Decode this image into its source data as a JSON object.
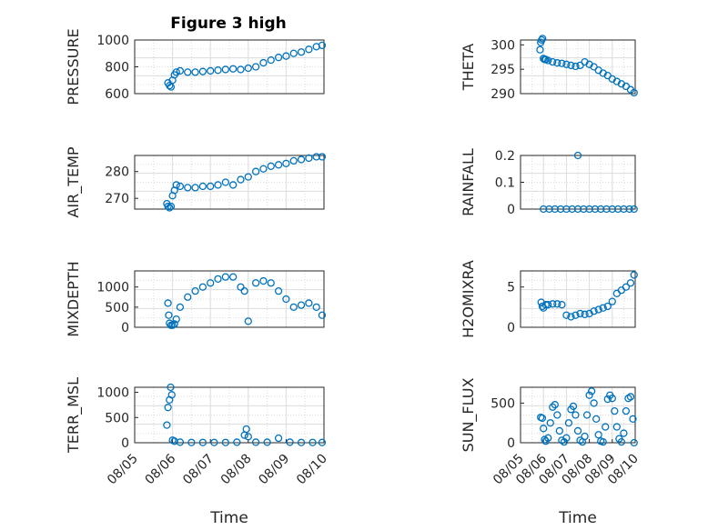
{
  "figure_title": "Figure 3 high",
  "colors": {
    "marker": "#0072BD",
    "axis": "#262626",
    "grid": "#dcdcdc"
  },
  "chart_data": [
    {
      "type": "scatter",
      "ylabel": "PRESSURE",
      "ylim": [
        600,
        1000
      ],
      "yticks": [
        "600",
        "800",
        "1000"
      ],
      "xlim": [
        0,
        5
      ],
      "xticks": [],
      "grid": true,
      "x": [
        0.88,
        0.92,
        0.96,
        1.0,
        1.05,
        1.1,
        1.2,
        1.4,
        1.6,
        1.8,
        2.0,
        2.2,
        2.4,
        2.6,
        2.8,
        3.0,
        3.2,
        3.4,
        3.6,
        3.8,
        4.0,
        4.2,
        4.4,
        4.6,
        4.8,
        4.95
      ],
      "y": [
        680,
        660,
        650,
        700,
        740,
        760,
        770,
        760,
        760,
        765,
        770,
        775,
        780,
        785,
        780,
        790,
        800,
        830,
        850,
        870,
        880,
        900,
        910,
        930,
        950,
        960
      ]
    },
    {
      "type": "scatter",
      "ylabel": "THETA",
      "ylim": [
        290,
        301
      ],
      "yticks": [
        "290",
        "295",
        "300"
      ],
      "xlim": [
        0,
        5
      ],
      "xticks": [],
      "grid": true,
      "x": [
        0.85,
        0.88,
        0.92,
        0.96,
        1.0,
        1.05,
        1.1,
        1.2,
        1.4,
        1.6,
        1.8,
        2.0,
        2.2,
        2.4,
        2.6,
        2.8,
        3.0,
        3.2,
        3.4,
        3.6,
        3.8,
        4.0,
        4.2,
        4.4,
        4.6,
        4.8,
        4.95
      ],
      "y": [
        299,
        300.5,
        301,
        301.3,
        297.2,
        297,
        297,
        296.8,
        296.5,
        296.3,
        296.2,
        296,
        295.8,
        295.6,
        295.8,
        296.5,
        296,
        295.5,
        294.8,
        294.2,
        293.7,
        293,
        292.5,
        292,
        291.5,
        290.8,
        290.2
      ]
    },
    {
      "type": "scatter",
      "ylabel": "AIR_TEMP",
      "ylim": [
        266,
        286
      ],
      "yticks": [
        "270",
        "280"
      ],
      "xlim": [
        0,
        5
      ],
      "xticks": [],
      "grid": true,
      "x": [
        0.85,
        0.88,
        0.92,
        0.96,
        1.0,
        1.05,
        1.1,
        1.2,
        1.4,
        1.6,
        1.8,
        2.0,
        2.2,
        2.4,
        2.6,
        2.8,
        3.0,
        3.2,
        3.4,
        3.6,
        3.8,
        4.0,
        4.2,
        4.4,
        4.6,
        4.8,
        4.95
      ],
      "y": [
        268,
        267,
        266.5,
        267,
        271,
        273,
        275,
        274.5,
        274,
        274,
        274.5,
        274.5,
        275,
        276,
        275,
        277,
        278,
        280,
        281,
        282,
        282.5,
        283,
        284,
        284.5,
        285,
        285.5,
        285.5
      ]
    },
    {
      "type": "scatter",
      "ylabel": "RAINFALL",
      "ylim": [
        0,
        0.2
      ],
      "yticks": [
        "0",
        "0.1",
        "0.2"
      ],
      "xlim": [
        0,
        5
      ],
      "xticks": [],
      "grid": true,
      "x": [
        1.0,
        1.25,
        1.5,
        1.75,
        2.0,
        2.25,
        2.5,
        2.75,
        3.0,
        3.25,
        3.5,
        3.75,
        4.0,
        4.25,
        4.5,
        4.75,
        4.95,
        2.5
      ],
      "y": [
        0,
        0,
        0,
        0,
        0,
        0,
        0,
        0,
        0,
        0,
        0,
        0,
        0,
        0,
        0,
        0,
        0,
        0.2
      ]
    },
    {
      "type": "scatter",
      "ylabel": "MIXDEPTH",
      "ylim": [
        0,
        1400
      ],
      "yticks": [
        "0",
        "500",
        "1000"
      ],
      "xlim": [
        0,
        5
      ],
      "xticks": [],
      "grid": true,
      "x": [
        0.88,
        0.9,
        0.92,
        0.96,
        1.0,
        1.05,
        1.1,
        1.2,
        1.4,
        1.6,
        1.8,
        2.0,
        2.2,
        2.4,
        2.6,
        2.8,
        2.9,
        3.0,
        3.2,
        3.4,
        3.6,
        3.8,
        4.0,
        4.2,
        4.4,
        4.6,
        4.8,
        4.95
      ],
      "y": [
        600,
        300,
        100,
        50,
        50,
        80,
        200,
        500,
        750,
        900,
        1000,
        1100,
        1200,
        1250,
        1250,
        1000,
        900,
        150,
        1100,
        1150,
        1100,
        900,
        700,
        500,
        550,
        600,
        500,
        300
      ]
    },
    {
      "type": "scatter",
      "ylabel": "H2OMIXRA",
      "ylim": [
        0,
        7
      ],
      "yticks": [
        "0",
        "5"
      ],
      "xlim": [
        0,
        5
      ],
      "xticks": [],
      "grid": true,
      "x": [
        0.9,
        0.95,
        1.0,
        1.1,
        1.2,
        1.4,
        1.6,
        1.8,
        2.0,
        2.2,
        2.4,
        2.6,
        2.8,
        3.0,
        3.2,
        3.4,
        3.6,
        3.8,
        4.0,
        4.2,
        4.4,
        4.6,
        4.8,
        4.95
      ],
      "y": [
        3.1,
        2.6,
        2.4,
        2.8,
        2.8,
        2.9,
        2.9,
        2.8,
        1.5,
        1.3,
        1.5,
        1.7,
        1.6,
        1.7,
        2.0,
        2.2,
        2.4,
        2.6,
        3.2,
        4.2,
        4.6,
        5.0,
        5.5,
        6.5
      ]
    },
    {
      "type": "scatter",
      "ylabel": "TERR_MSL",
      "ylim": [
        0,
        1100
      ],
      "yticks": [
        "0",
        "500",
        "1000"
      ],
      "xlim": [
        0,
        5
      ],
      "xticks": [
        "08/05",
        "08/06",
        "08/07",
        "08/08",
        "08/09",
        "08/10"
      ],
      "xlabel": "Time",
      "grid": true,
      "x": [
        0.85,
        0.88,
        0.92,
        0.95,
        0.98,
        1.0,
        1.05,
        1.2,
        1.5,
        1.8,
        2.1,
        2.4,
        2.7,
        2.9,
        2.95,
        3.0,
        3.2,
        3.5,
        3.8,
        4.1,
        4.4,
        4.7,
        4.95
      ],
      "y": [
        350,
        700,
        850,
        1100,
        950,
        50,
        30,
        10,
        5,
        5,
        5,
        5,
        10,
        150,
        270,
        120,
        10,
        10,
        90,
        10,
        5,
        5,
        5
      ]
    },
    {
      "type": "scatter",
      "ylabel": "SUN_FLUX",
      "ylim": [
        0,
        700
      ],
      "yticks": [
        "0",
        "500"
      ],
      "xlim": [
        0,
        5
      ],
      "xticks": [
        "08/05",
        "08/06",
        "08/07",
        "08/08",
        "08/09",
        "08/10"
      ],
      "xlabel": "Time",
      "grid": true,
      "x": [
        0.88,
        0.95,
        1.0,
        1.05,
        1.1,
        1.2,
        1.3,
        1.4,
        1.5,
        1.6,
        1.7,
        1.8,
        1.9,
        2.0,
        2.1,
        2.2,
        2.3,
        2.4,
        2.5,
        2.6,
        2.7,
        2.8,
        2.9,
        3.0,
        3.1,
        3.2,
        3.3,
        3.4,
        3.5,
        3.6,
        3.7,
        3.8,
        3.9,
        4.0,
        4.1,
        4.2,
        4.3,
        4.4,
        4.5,
        4.6,
        4.7,
        4.8,
        4.9,
        4.95
      ],
      "y": [
        320,
        310,
        180,
        40,
        20,
        60,
        250,
        450,
        480,
        350,
        150,
        30,
        10,
        60,
        250,
        420,
        460,
        350,
        150,
        30,
        10,
        80,
        350,
        600,
        650,
        500,
        300,
        100,
        20,
        10,
        200,
        550,
        600,
        560,
        400,
        200,
        50,
        10,
        120,
        400,
        560,
        580,
        300,
        0
      ]
    }
  ]
}
